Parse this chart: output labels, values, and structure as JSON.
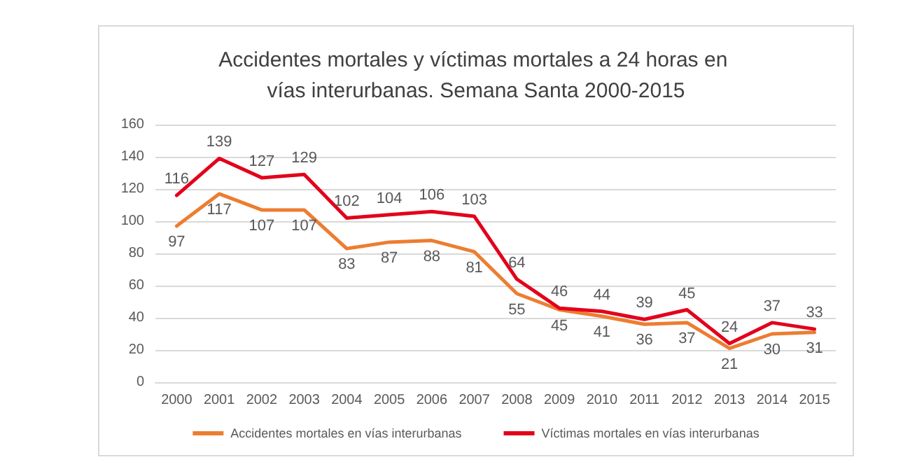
{
  "chart_data": {
    "type": "line",
    "title": "Accidentes mortales y víctimas mortales a 24 horas en vías interurbanas. Semana Santa 2000-2015",
    "categories": [
      "2000",
      "2001",
      "2002",
      "2003",
      "2004",
      "2005",
      "2006",
      "2007",
      "2008",
      "2009",
      "2010",
      "2011",
      "2012",
      "2013",
      "2014",
      "2015"
    ],
    "series": [
      {
        "name": "Accidentes mortales en vías interurbanas",
        "color": "#ed7d31",
        "values": [
          97,
          117,
          107,
          107,
          83,
          87,
          88,
          81,
          55,
          45,
          41,
          36,
          37,
          21,
          30,
          31
        ]
      },
      {
        "name": "Víctimas mortales en vías interurbanas",
        "color": "#e3001b",
        "values": [
          116,
          139,
          127,
          129,
          102,
          104,
          106,
          103,
          64,
          46,
          44,
          39,
          45,
          24,
          37,
          33
        ]
      }
    ],
    "ylim": [
      0,
      160
    ],
    "yticks": [
      0,
      20,
      40,
      60,
      80,
      100,
      120,
      140,
      160
    ],
    "grid": "y",
    "legend": "bottom",
    "marker": "none",
    "line_style": "solid",
    "data_labels": true
  }
}
